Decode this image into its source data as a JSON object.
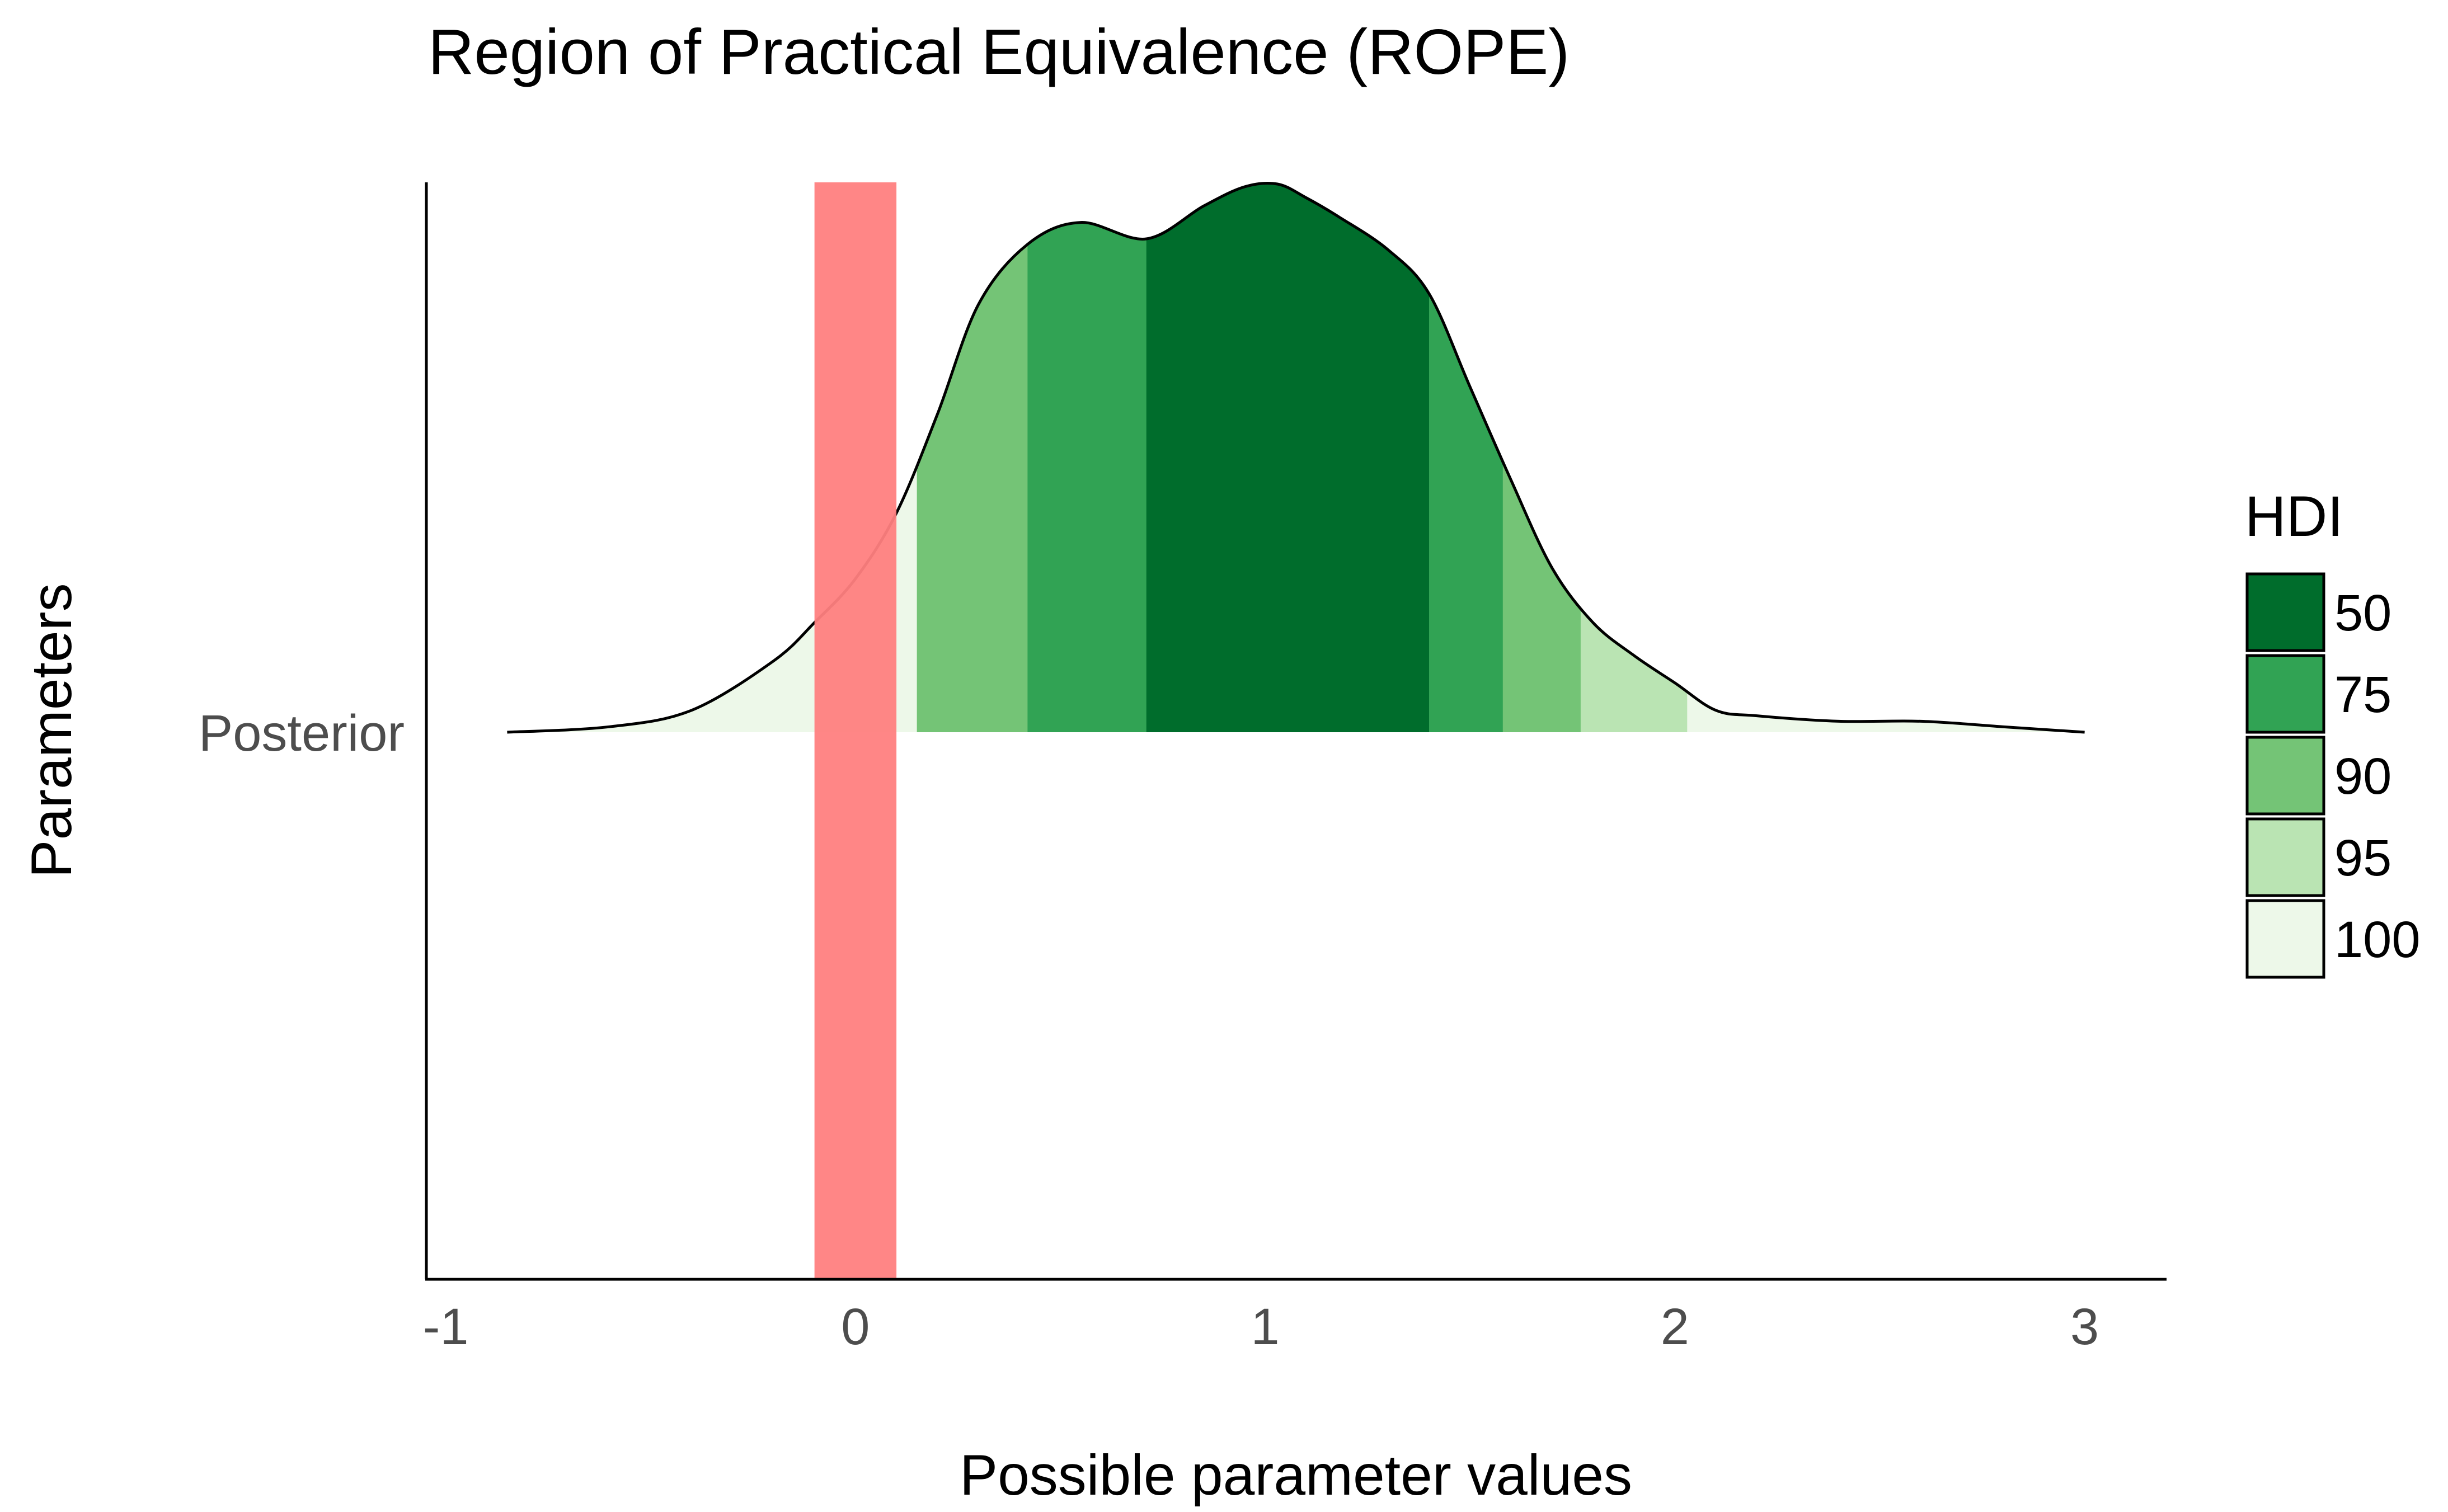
{
  "chart_data": {
    "type": "area",
    "title": "Region of Practical Equivalence (ROPE)",
    "xlabel": "Possible parameter values",
    "ylabel": "Parameters",
    "xlim": [
      -1.05,
      3.2
    ],
    "x_ticks": [
      -1,
      0,
      1,
      2,
      3
    ],
    "x_tick_labels": [
      "-1",
      "0",
      "1",
      "2",
      "3"
    ],
    "y_categories": [
      "Posterior"
    ],
    "rope": {
      "range": [
        -0.1,
        0.1
      ],
      "color": "#ff8080"
    },
    "density": {
      "x": [
        -0.85,
        -0.6,
        -0.4,
        -0.2,
        -0.1,
        0.0,
        0.1,
        0.2,
        0.3,
        0.42,
        0.55,
        0.71,
        0.85,
        0.95,
        1.03,
        1.1,
        1.18,
        1.3,
        1.4,
        1.5,
        1.6,
        1.7,
        1.8,
        1.9,
        2.0,
        2.1,
        2.2,
        2.4,
        2.6,
        2.8,
        3.0
      ],
      "y": [
        0.0,
        0.01,
        0.04,
        0.13,
        0.2,
        0.28,
        0.4,
        0.58,
        0.78,
        0.89,
        0.93,
        0.9,
        0.96,
        0.995,
        1.0,
        0.975,
        0.94,
        0.88,
        0.8,
        0.63,
        0.46,
        0.3,
        0.2,
        0.14,
        0.09,
        0.04,
        0.03,
        0.02,
        0.02,
        0.01,
        0.0
      ]
    },
    "hdi_bands": [
      {
        "level": "100",
        "range": [
          -0.85,
          3.0
        ],
        "color": "#edf8e9"
      },
      {
        "level": "95",
        "range": [
          0.15,
          2.03
        ],
        "color": "#bae4b3"
      },
      {
        "level": "90",
        "range": [
          0.15,
          1.77
        ],
        "color": "#74c476"
      },
      {
        "level": "75",
        "range": [
          0.42,
          1.58
        ],
        "color": "#31a354"
      },
      {
        "level": "50",
        "range": [
          0.71,
          1.4
        ],
        "color": "#006d2c"
      }
    ],
    "legend": {
      "title": "HDI",
      "placement": "right",
      "items": [
        {
          "label": "50",
          "color": "#006d2c"
        },
        {
          "label": "75",
          "color": "#31a354"
        },
        {
          "label": "90",
          "color": "#74c476"
        },
        {
          "label": "95",
          "color": "#bae4b3"
        },
        {
          "label": "100",
          "color": "#edf8e9"
        }
      ]
    },
    "grid": false
  }
}
